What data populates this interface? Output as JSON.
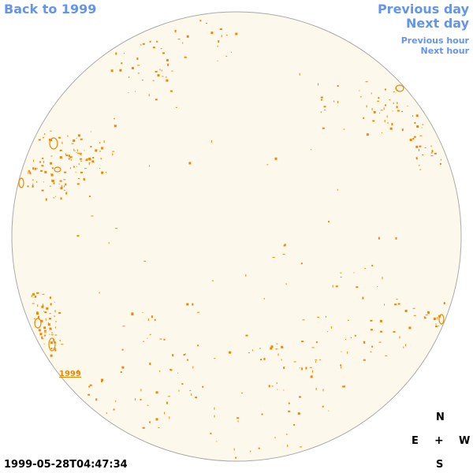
{
  "nav": {
    "back_label": "Back to 1999",
    "prev_day_label": "Previous day",
    "next_day_label": "Next day",
    "prev_hour_label": "Previous hour",
    "next_hour_label": "Next hour"
  },
  "disk": {
    "year_label": "1999",
    "fill_color": "#fdf8ec",
    "edge_color": "#aaaaaa",
    "feature_color": "#ee8800"
  },
  "compass": {
    "north": "N",
    "east": "E",
    "center": "+",
    "west": "W",
    "south": "S"
  },
  "timestamp": "1999-05-28T04:47:34",
  "colors": {
    "link": "#6495ed",
    "text": "#000000"
  }
}
